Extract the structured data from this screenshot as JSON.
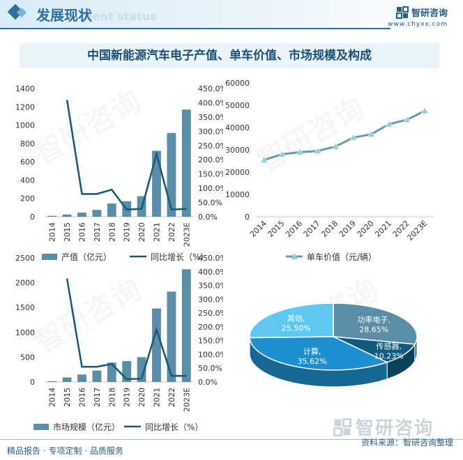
{
  "header": {
    "title": "发展现状",
    "subtitle": "ment status"
  },
  "brand": {
    "name": "智研咨询",
    "url": "www.chyxx.com"
  },
  "watermark_text": "智研咨询",
  "figure_title": "中国新能源汽车电子产值、单车价值、市场规模及构成",
  "footer": {
    "left": "精品报告 · 专项定制 · 品质服务",
    "source": "资料来源：智研咨询整理"
  },
  "colors": {
    "bar": "#5b8ea6",
    "growth_line": "#1b5b78",
    "unit_line": "#6f98ab",
    "marker": "#8fd1d6"
  },
  "chart_data": [
    {
      "type": "bar",
      "id": "output",
      "categories": [
        "2014",
        "2015",
        "2016",
        "2017",
        "2018",
        "2019",
        "2020",
        "2021",
        "2022",
        "2023E"
      ],
      "series": [
        {
          "name": "产值（亿元）",
          "axis": "left",
          "values": [
            10,
            25,
            45,
            75,
            145,
            170,
            225,
            720,
            915,
            1170
          ]
        },
        {
          "name": "同比增长（%）",
          "axis": "right",
          "kind": "line",
          "values": [
            null,
            410,
            80,
            80,
            95,
            25,
            28,
            220,
            25,
            28
          ]
        }
      ],
      "ylim": [
        0,
        1400
      ],
      "yticks": [
        "0",
        "200",
        "400",
        "600",
        "800",
        "1000",
        "1200",
        "1400"
      ],
      "y2lim": [
        0,
        450
      ],
      "y2ticks": [
        "0.0%",
        "50.0%",
        "100.0%",
        "150.0%",
        "200.0%",
        "250.0%",
        "300.0%",
        "350.0%",
        "400.0%",
        "450.0%"
      ],
      "legend": "bottom"
    },
    {
      "type": "line",
      "id": "unit_value",
      "categories": [
        "2014",
        "2015",
        "2016",
        "2017",
        "2018",
        "2019",
        "2020",
        "2021",
        "2022",
        "2023E"
      ],
      "series": [
        {
          "name": "单车价值（元/辆）",
          "values": [
            25500,
            28000,
            29000,
            29500,
            31500,
            35500,
            37000,
            41500,
            43500,
            47500
          ]
        }
      ],
      "ylim": [
        0,
        60000
      ],
      "yticks": [
        "0",
        "10000",
        "20000",
        "30000",
        "40000",
        "50000",
        "60000"
      ],
      "legend": "bottom"
    },
    {
      "type": "bar",
      "id": "market_size",
      "categories": [
        "2014",
        "2015",
        "2016",
        "2017",
        "2018",
        "2019",
        "2020",
        "2021",
        "2022",
        "2023E"
      ],
      "series": [
        {
          "name": "市场规模（亿元）",
          "axis": "left",
          "values": [
            15,
            90,
            150,
            230,
            390,
            420,
            500,
            1480,
            1820,
            2270
          ]
        },
        {
          "name": "同比增长（%）",
          "axis": "right",
          "kind": "line",
          "values": [
            null,
            375,
            55,
            55,
            65,
            10,
            12,
            190,
            22,
            22
          ]
        }
      ],
      "ylim": [
        0,
        2500
      ],
      "yticks": [
        "0",
        "500",
        "1000",
        "1500",
        "2000",
        "2500"
      ],
      "y2lim": [
        0,
        450
      ],
      "y2ticks": [
        "0.0%",
        "50.0%",
        "100.0%",
        "150.0%",
        "200.0%",
        "250.0%",
        "300.0%",
        "350.0%",
        "400.0%",
        "450.0%"
      ],
      "legend": "bottom"
    },
    {
      "type": "pie",
      "id": "composition",
      "slices": [
        {
          "label": "功率电子,",
          "pct": "28.65%",
          "value": 28.65,
          "color": "#5b8ea6"
        },
        {
          "label": "传感器,",
          "pct": "10.23%",
          "value": 10.23,
          "color": "#0f5b7f"
        },
        {
          "label": "计算,",
          "pct": "35.62%",
          "value": 35.62,
          "color": "#1f8fcf"
        },
        {
          "label": "其他,",
          "pct": "25.50%",
          "value": 25.5,
          "color": "#5ec8f2"
        }
      ]
    }
  ]
}
